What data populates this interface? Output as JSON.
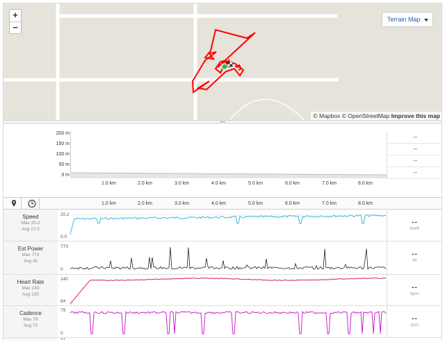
{
  "map": {
    "zoom_in": "+",
    "zoom_out": "−",
    "map_type": "Terrain Map",
    "attribution_prefix": "© Mapbox © OpenStreetMap",
    "attribution_link": "Improve this map",
    "colors": {
      "route": "#ff0000",
      "start": "#2db34a",
      "background": "#e6e3db"
    }
  },
  "elevation": {
    "y_ticks": [
      "200 m",
      "150 m",
      "100 m",
      "50 m",
      "0 m"
    ],
    "side_values": [
      "--",
      "--",
      "--",
      "--"
    ]
  },
  "distance_ticks": [
    "1.0 km",
    "2.0 km",
    "3.0 km",
    "4.0 km",
    "5.0 km",
    "6.0 km",
    "7.0 km",
    "8.0 km"
  ],
  "toolbar": {
    "pin_icon": "map-pin-icon",
    "time_icon": "clock-icon"
  },
  "streams": [
    {
      "name": "Speed",
      "max": "Max 20.2",
      "avg": "Avg 17.0",
      "axis_top": "20.2",
      "axis_bottom": "0.0",
      "value": "--",
      "unit": "km/h",
      "color": "#3fb4d7"
    },
    {
      "name": "Est Power",
      "max": "Max 773",
      "avg": "Avg 45",
      "axis_top": "773",
      "axis_bottom": "0",
      "value": "--",
      "unit": "W",
      "color": "#222222"
    },
    {
      "name": "Heart Rate",
      "max": "Max 140",
      "avg": "Avg 130",
      "axis_top": "140",
      "axis_bottom": "84",
      "value": "--",
      "unit": "bpm",
      "color": "#d6234a"
    },
    {
      "name": "Cadence",
      "max": "Max 79",
      "avg": "Avg 72",
      "axis_top": "79",
      "axis_bottom": "0",
      "value": "--",
      "unit": "rpm",
      "color": "#cc22cc"
    }
  ],
  "next_row_axis_top": "31"
}
